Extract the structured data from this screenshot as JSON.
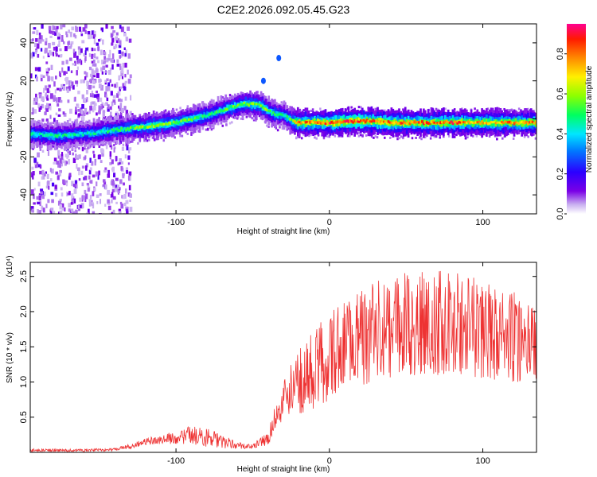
{
  "figure": {
    "title": "C2E2.2026.092.05.45.G23",
    "colors": {
      "background": "#ffffff",
      "axis": "#000000",
      "snr_line": "#ee3333"
    }
  },
  "chart_data": [
    {
      "type": "heatmap",
      "name": "spectrogram",
      "xlabel": "Height of straight line (km)",
      "ylabel": "Frequency (Hz)",
      "xlim": [
        -195,
        135
      ],
      "ylim": [
        -50,
        50
      ],
      "xticks": [
        -100,
        0,
        100
      ],
      "xtick_labels": [
        "-100",
        "0",
        "100"
      ],
      "yticks": [
        -40,
        -20,
        0,
        20,
        40
      ],
      "ytick_labels": [
        "-40",
        "-20",
        "0",
        "20",
        "40"
      ],
      "colorbar": {
        "label": "Normalized spectral amplitude",
        "range": [
          0.0,
          0.95
        ],
        "ticks": [
          0.0,
          0.2,
          0.4,
          0.6,
          0.8
        ],
        "tick_labels": [
          "0.0",
          "0.2",
          "0.4",
          "0.6",
          "0.8"
        ],
        "colormap": "rainbow (white, violet, blue, cyan, green, yellow, red, magenta)"
      },
      "ridge": {
        "x": [
          -195,
          -180,
          -160,
          -140,
          -120,
          -100,
          -80,
          -65,
          -55,
          -45,
          -38,
          -30,
          -25,
          -20,
          0,
          20,
          40,
          60,
          80,
          100,
          120,
          135
        ],
        "y": [
          -8,
          -9,
          -8,
          -6,
          -4,
          -2,
          2,
          6,
          8,
          7,
          3,
          2,
          -1,
          -2,
          -2,
          -1,
          -2,
          -2,
          -2,
          -2,
          -2,
          -2
        ],
        "peak_amplitude": [
          0.45,
          0.5,
          0.45,
          0.5,
          0.6,
          0.6,
          0.5,
          0.55,
          0.6,
          0.6,
          0.55,
          0.45,
          0.6,
          0.8,
          0.9,
          0.9,
          0.85,
          0.85,
          0.85,
          0.8,
          0.8,
          0.8
        ]
      },
      "noise_region": {
        "x_range": [
          -195,
          -140
        ],
        "description": "scattered low-amplitude speckle"
      },
      "isolated_points": [
        {
          "x": -33,
          "y": 32,
          "amplitude": 0.3
        },
        {
          "x": -43,
          "y": 20,
          "amplitude": 0.3
        }
      ]
    },
    {
      "type": "line",
      "name": "snr",
      "xlabel": "Height of straight line (km)",
      "ylabel": "SNR (10 * v/v)",
      "y_multiplier": "(x10⁴)",
      "xlim": [
        -195,
        135
      ],
      "ylim": [
        0,
        2.7
      ],
      "xticks": [
        -100,
        0,
        100
      ],
      "xtick_labels": [
        "-100",
        "0",
        "100"
      ],
      "yticks": [
        0.5,
        1.0,
        1.5,
        2.0,
        2.5
      ],
      "ytick_labels": [
        "0.5",
        "1.0",
        "1.5",
        "2.0",
        "2.5"
      ],
      "envelope": {
        "x": [
          -195,
          -160,
          -140,
          -130,
          -120,
          -110,
          -100,
          -90,
          -80,
          -70,
          -60,
          -50,
          -40,
          -35,
          -30,
          -25,
          -20,
          -10,
          0,
          10,
          20,
          40,
          60,
          80,
          100,
          120,
          135
        ],
        "low": [
          0.01,
          0.01,
          0.02,
          0.05,
          0.1,
          0.12,
          0.12,
          0.12,
          0.08,
          0.06,
          0.05,
          0.05,
          0.1,
          0.35,
          0.45,
          0.5,
          0.55,
          0.6,
          0.75,
          0.9,
          0.95,
          1.05,
          1.1,
          1.1,
          1.05,
          1.0,
          1.0
        ],
        "high": [
          0.05,
          0.05,
          0.06,
          0.12,
          0.2,
          0.25,
          0.3,
          0.38,
          0.35,
          0.25,
          0.15,
          0.12,
          0.3,
          0.7,
          1.0,
          1.25,
          1.45,
          1.8,
          2.0,
          2.25,
          2.35,
          2.5,
          2.65,
          2.6,
          2.45,
          2.3,
          2.1
        ]
      }
    }
  ]
}
